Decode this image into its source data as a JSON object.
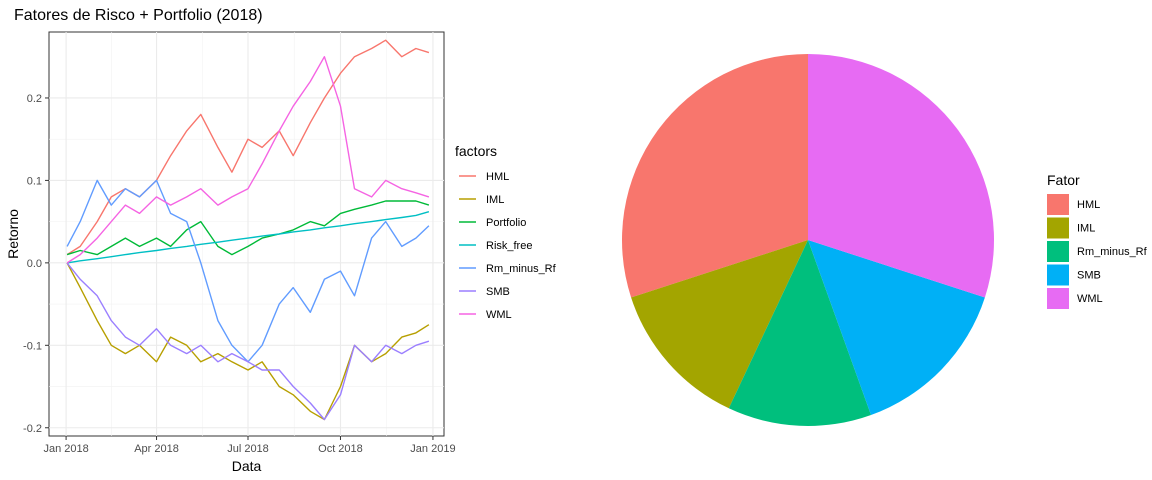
{
  "chart_data": [
    {
      "type": "line",
      "title": "Fatores de Risco + Portfolio (2018)",
      "xlabel": "Data",
      "ylabel": "Retorno",
      "x_ticks": [
        "Jan 2018",
        "Apr 2018",
        "Jul 2018",
        "Oct 2018",
        "Jan 2019"
      ],
      "y_ticks": [
        "-0.2",
        "-0.1",
        "0.0",
        "0.1",
        "0.2"
      ],
      "y_tick_values": [
        -0.2,
        -0.1,
        0.0,
        0.1,
        0.2
      ],
      "x_range": [
        "2017-12-15",
        "2019-01-12"
      ],
      "ylim": [
        -0.21,
        0.28
      ],
      "grid": true,
      "legend_title": "factors",
      "legend_position": "right",
      "x": [
        "2018-01-02",
        "2018-01-15",
        "2018-02-01",
        "2018-02-15",
        "2018-03-01",
        "2018-03-15",
        "2018-04-01",
        "2018-04-15",
        "2018-05-01",
        "2018-05-15",
        "2018-06-01",
        "2018-06-15",
        "2018-07-01",
        "2018-07-15",
        "2018-08-01",
        "2018-08-15",
        "2018-09-01",
        "2018-09-15",
        "2018-10-01",
        "2018-10-15",
        "2018-11-01",
        "2018-11-15",
        "2018-12-01",
        "2018-12-15",
        "2018-12-28"
      ],
      "series": [
        {
          "name": "HML",
          "color": "#F8766D",
          "values": [
            0.01,
            0.02,
            0.05,
            0.08,
            0.09,
            0.08,
            0.1,
            0.13,
            0.16,
            0.18,
            0.14,
            0.11,
            0.15,
            0.14,
            0.16,
            0.13,
            0.17,
            0.2,
            0.23,
            0.25,
            0.26,
            0.27,
            0.25,
            0.26,
            0.255
          ]
        },
        {
          "name": "IML",
          "color": "#B79F00",
          "values": [
            0.0,
            -0.03,
            -0.07,
            -0.1,
            -0.11,
            -0.1,
            -0.12,
            -0.09,
            -0.1,
            -0.12,
            -0.11,
            -0.12,
            -0.13,
            -0.12,
            -0.15,
            -0.16,
            -0.18,
            -0.19,
            -0.15,
            -0.1,
            -0.12,
            -0.11,
            -0.09,
            -0.085,
            -0.075
          ]
        },
        {
          "name": "Portfolio",
          "color": "#00BA38",
          "values": [
            0.01,
            0.015,
            0.01,
            0.02,
            0.03,
            0.02,
            0.03,
            0.02,
            0.04,
            0.05,
            0.02,
            0.01,
            0.02,
            0.03,
            0.035,
            0.04,
            0.05,
            0.045,
            0.06,
            0.065,
            0.07,
            0.075,
            0.075,
            0.075,
            0.07
          ]
        },
        {
          "name": "Risk_free",
          "color": "#00BFC4",
          "values": [
            0.0,
            0.0025,
            0.005,
            0.0075,
            0.01,
            0.0125,
            0.015,
            0.0175,
            0.02,
            0.0225,
            0.025,
            0.0275,
            0.03,
            0.0325,
            0.035,
            0.0375,
            0.04,
            0.0425,
            0.045,
            0.0475,
            0.05,
            0.0525,
            0.055,
            0.0575,
            0.062
          ]
        },
        {
          "name": "Rm_minus_Rf",
          "color": "#619CFF",
          "values": [
            0.02,
            0.05,
            0.1,
            0.07,
            0.09,
            0.08,
            0.1,
            0.06,
            0.05,
            0.0,
            -0.07,
            -0.1,
            -0.12,
            -0.1,
            -0.05,
            -0.03,
            -0.06,
            -0.02,
            -0.01,
            -0.04,
            0.03,
            0.05,
            0.02,
            0.03,
            0.045
          ]
        },
        {
          "name": "SMB",
          "color": "#9B7FFF",
          "values": [
            0.0,
            -0.02,
            -0.04,
            -0.07,
            -0.09,
            -0.1,
            -0.08,
            -0.1,
            -0.11,
            -0.1,
            -0.12,
            -0.11,
            -0.12,
            -0.13,
            -0.13,
            -0.15,
            -0.17,
            -0.19,
            -0.16,
            -0.1,
            -0.12,
            -0.1,
            -0.11,
            -0.1,
            -0.095
          ]
        },
        {
          "name": "WML",
          "color": "#F564E3",
          "values": [
            0.0,
            0.01,
            0.03,
            0.05,
            0.07,
            0.06,
            0.08,
            0.07,
            0.08,
            0.09,
            0.07,
            0.08,
            0.09,
            0.12,
            0.16,
            0.19,
            0.22,
            0.25,
            0.19,
            0.09,
            0.08,
            0.1,
            0.09,
            0.085,
            0.08
          ]
        }
      ]
    },
    {
      "type": "pie",
      "legend_title": "Fator",
      "legend_position": "right",
      "categories": [
        "HML",
        "IML",
        "Rm_minus_Rf",
        "SMB",
        "WML"
      ],
      "values": [
        0.3,
        0.13,
        0.125,
        0.145,
        0.3
      ],
      "colors": [
        "#F8766D",
        "#A3A500",
        "#00BF7D",
        "#00B0F6",
        "#E76BF3"
      ]
    }
  ]
}
